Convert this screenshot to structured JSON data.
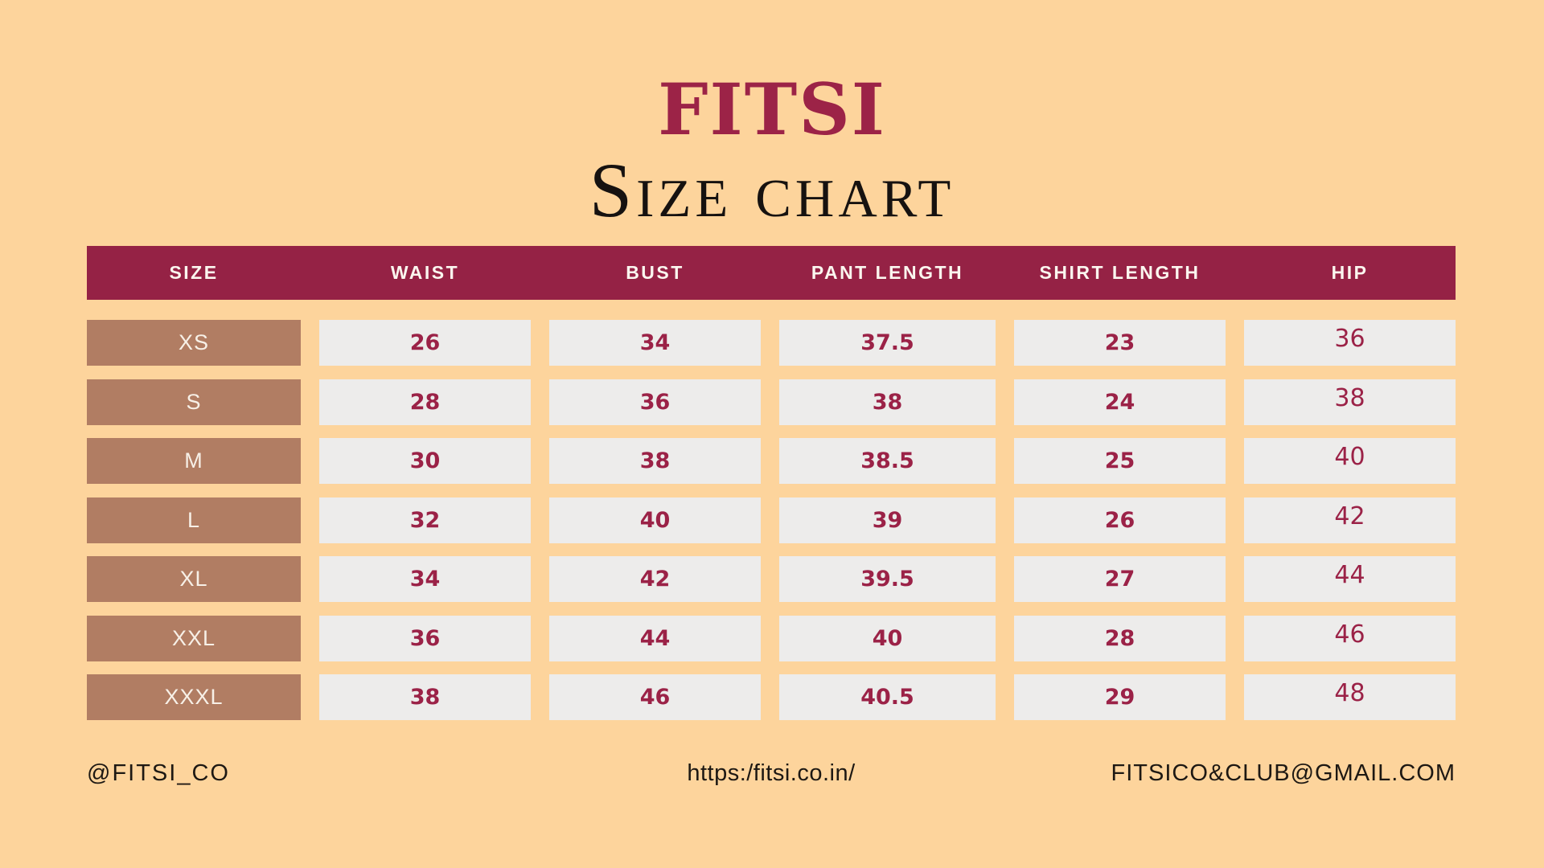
{
  "colors": {
    "background": "#FDD49C",
    "header_bar": "#952245",
    "brand_maroon": "#9C2347",
    "size_cell_brown": "#B17D63",
    "value_cell_gray": "#EDECEB",
    "value_text_maroon": "#9B2247",
    "title_black": "#161210"
  },
  "title": {
    "brand": "FITSI",
    "heading": "Size chart"
  },
  "chart_data": {
    "type": "table",
    "title": "FITSI Size chart",
    "columns": [
      "SIZE",
      "WAIST",
      "BUST",
      "PANT LENGTH",
      "SHIRT LENGTH",
      "HIP"
    ],
    "rows": [
      [
        "XS",
        "26",
        "34",
        "37.5",
        "23",
        "36"
      ],
      [
        "S",
        "28",
        "36",
        "38",
        "24",
        "38"
      ],
      [
        "M",
        "30",
        "38",
        "38.5",
        "25",
        "40"
      ],
      [
        "L",
        "32",
        "40",
        "39",
        "26",
        "42"
      ],
      [
        "XL",
        "34",
        "42",
        "39.5",
        "27",
        "44"
      ],
      [
        "XXL",
        "36",
        "44",
        "40",
        "28",
        "46"
      ],
      [
        "XXXL",
        "38",
        "46",
        "40.5",
        "29",
        "48"
      ]
    ]
  },
  "footer": {
    "social_handle": "@FITSI_CO",
    "website": "https:/fitsi.co.in/",
    "email": "FITSICO&CLUB@GMAIL.COM"
  }
}
